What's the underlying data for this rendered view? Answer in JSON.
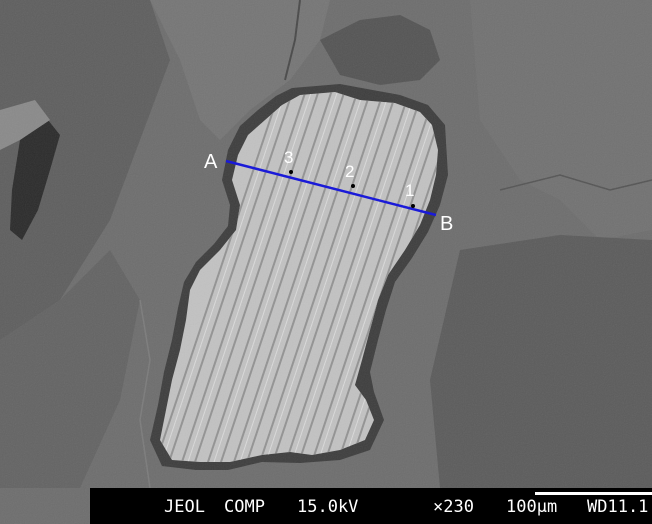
{
  "labels": {
    "start": "A",
    "end": "B",
    "points": [
      "1",
      "2",
      "3"
    ]
  },
  "info_bar": {
    "instrument": "JEOL",
    "mode": "COMP",
    "voltage": "15.0kV",
    "magnification": "×230",
    "scale": "100µm",
    "working_distance": "WD11.1"
  },
  "colors": {
    "traverse_line": "#1a1ad8",
    "matrix": "#6e6e6e",
    "grain": "#c2c2c2"
  }
}
